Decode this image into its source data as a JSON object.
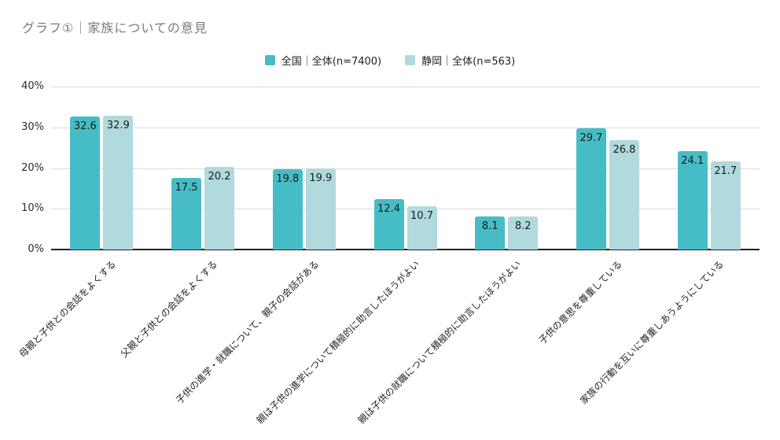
{
  "title": "グラフ①｜家族についての意見",
  "legend": [
    {
      "label": "全国｜全体(n=7400)",
      "color": "#46bdc6"
    },
    {
      "label": "静岡｜全体(n=563)",
      "color": "#b0dadd"
    }
  ],
  "colors": {
    "national_series": "#46bdc6",
    "shizuoka_series": "#b0dadd",
    "gridline": "#d9d9d9",
    "baseline": "#212121",
    "title_text": "#7b7b7b"
  },
  "chart_data": {
    "type": "bar",
    "title": "グラフ①｜家族についての意見",
    "categories": [
      "母親と子供との会話をよくする",
      "父親と子供との会話をよくする",
      "子供の進学・就職について、親子の会話がある",
      "親は子供の進学について積極的に助言したほうがよい",
      "親は子供の就職について積極的に助言したほうがよい",
      "子供の意思を尊重している",
      "家族の行動を互いに尊重しあうようにしている"
    ],
    "series": [
      {
        "name": "全国｜全体(n=7400)",
        "color": "#46bdc6",
        "values": [
          32.6,
          17.5,
          19.8,
          12.4,
          8.1,
          29.7,
          24.1
        ]
      },
      {
        "name": "静岡｜全体(n=563)",
        "color": "#b0dadd",
        "values": [
          32.9,
          20.2,
          19.9,
          10.7,
          8.2,
          26.8,
          21.7
        ]
      }
    ],
    "xlabel": "",
    "ylabel": "",
    "ylim": [
      0,
      40
    ],
    "yticks": [
      "0%",
      "10%",
      "20%",
      "30%",
      "40%"
    ],
    "grid": true,
    "legend_position": "top-center",
    "value_labels": "inside-top"
  }
}
